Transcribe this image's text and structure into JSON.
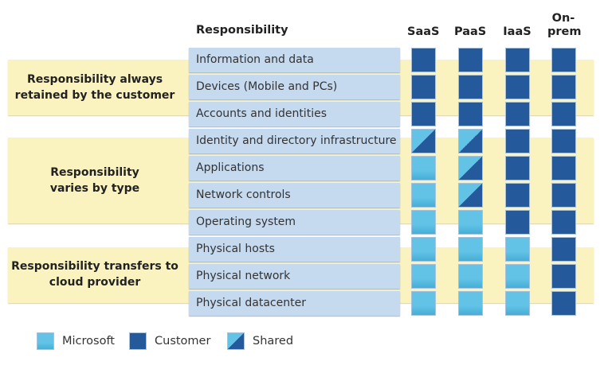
{
  "header": {
    "responsibility": "Responsibility",
    "columns": [
      "SaaS",
      "PaaS",
      "IaaS",
      "On-\nprem"
    ]
  },
  "groups": [
    {
      "title": "Responsibility always retained by the customer"
    },
    {
      "title": "Responsibility varies by type"
    },
    {
      "title": "Responsibility transfers to cloud provider"
    }
  ],
  "rows": [
    {
      "label": "Information and data",
      "cells": [
        "customer",
        "customer",
        "customer",
        "customer"
      ]
    },
    {
      "label": "Devices (Mobile and PCs)",
      "cells": [
        "customer",
        "customer",
        "customer",
        "customer"
      ]
    },
    {
      "label": "Accounts and identities",
      "cells": [
        "customer",
        "customer",
        "customer",
        "customer"
      ]
    },
    {
      "label": "Identity and directory infrastructure",
      "cells": [
        "shared",
        "shared",
        "customer",
        "customer"
      ]
    },
    {
      "label": "Applications",
      "cells": [
        "microsoft",
        "shared",
        "customer",
        "customer"
      ]
    },
    {
      "label": "Network controls",
      "cells": [
        "microsoft",
        "shared",
        "customer",
        "customer"
      ]
    },
    {
      "label": "Operating system",
      "cells": [
        "microsoft",
        "microsoft",
        "customer",
        "customer"
      ]
    },
    {
      "label": "Physical hosts",
      "cells": [
        "microsoft",
        "microsoft",
        "microsoft",
        "customer"
      ]
    },
    {
      "label": "Physical network",
      "cells": [
        "microsoft",
        "microsoft",
        "microsoft",
        "customer"
      ]
    },
    {
      "label": "Physical datacenter",
      "cells": [
        "microsoft",
        "microsoft",
        "microsoft",
        "customer"
      ]
    }
  ],
  "legend": [
    {
      "key": "microsoft",
      "label": "Microsoft"
    },
    {
      "key": "customer",
      "label": "Customer"
    },
    {
      "key": "shared",
      "label": "Shared"
    }
  ],
  "colors": {
    "microsoft": "#62c3e6",
    "customer": "#245a9c",
    "band": "#fbf3bf",
    "label_bg": "#c5d9ef"
  }
}
